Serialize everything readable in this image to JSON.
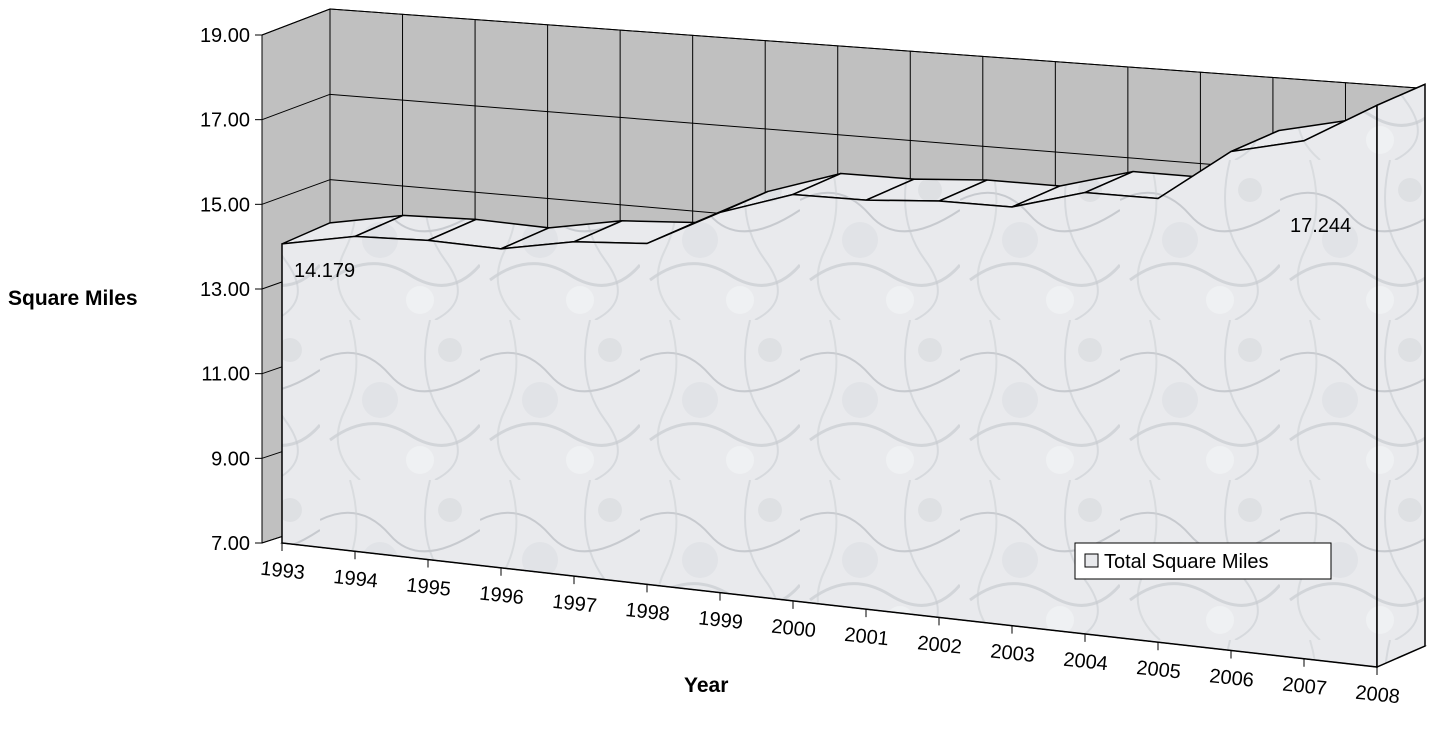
{
  "chart_data": {
    "type": "area",
    "view": "3d",
    "categories": [
      "1993",
      "1994",
      "1995",
      "1996",
      "1997",
      "1998",
      "1999",
      "2000",
      "2001",
      "2002",
      "2003",
      "2004",
      "2005",
      "2006",
      "2007",
      "2008"
    ],
    "series": [
      {
        "name": "Total Square Miles",
        "values": [
          14.179,
          14.4,
          14.35,
          14.2,
          14.4,
          14.4,
          15.1,
          15.5,
          15.4,
          15.4,
          15.3,
          15.6,
          15.5,
          16.4,
          16.6,
          17.244
        ]
      }
    ],
    "data_labels": [
      {
        "category": "1993",
        "text": "14.179"
      },
      {
        "category": "2008",
        "text": "17.244"
      }
    ],
    "xlabel": "Year",
    "ylabel": "Square Miles",
    "ylim": [
      7,
      19
    ],
    "yticks": [
      "7.00",
      "9.00",
      "11.00",
      "13.00",
      "15.00",
      "17.00",
      "19.00"
    ],
    "grid": true,
    "legend": {
      "placement": "bottom-right",
      "entries": [
        "Total Square Miles"
      ]
    },
    "colors": {
      "wall": "#c0c0c0",
      "floor": "#808080",
      "area": "#e8e9ec",
      "grid": "#000000"
    }
  }
}
